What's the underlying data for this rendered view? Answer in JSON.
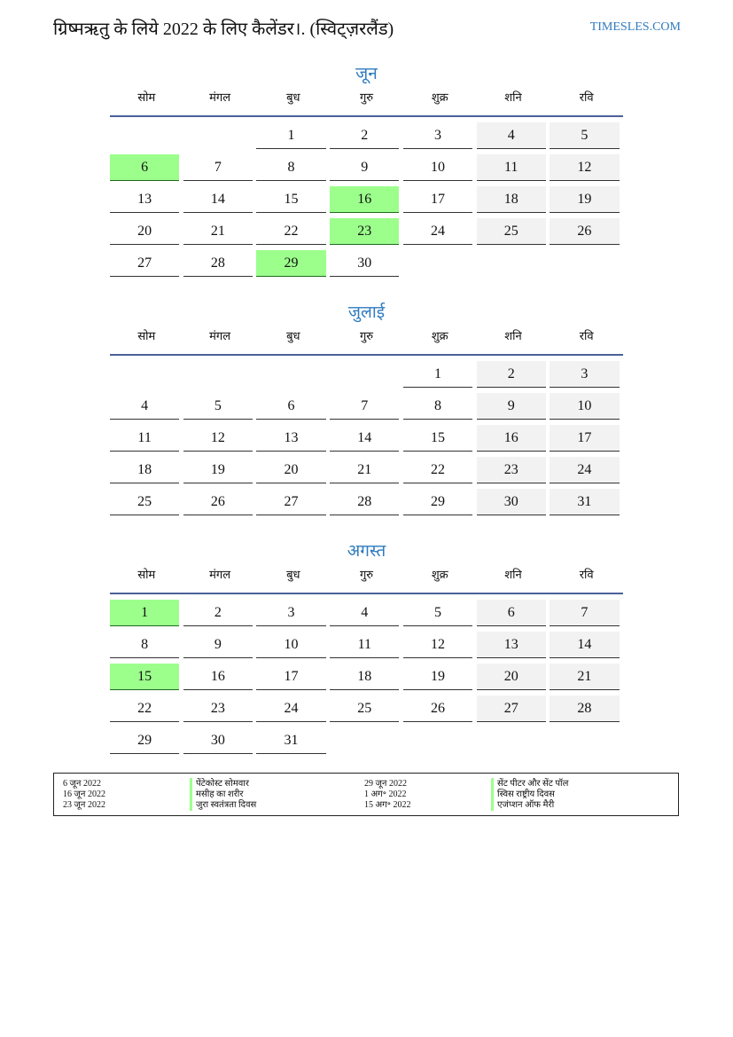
{
  "header": {
    "title": "ग्रिष्मऋतु के लिये 2022 के लिए कैलेंडर।. (स्विट्ज़रलैंड)",
    "site": "TIMESLES.COM"
  },
  "colors": {
    "accent": "#2f7bbf",
    "holiday": "#9cff8c",
    "weekend": "#f2f2f2"
  },
  "weekdays": [
    "सोम",
    "मंगल",
    "बुध",
    "गुरु",
    "शुक्र",
    "शनि",
    "रवि"
  ],
  "months": [
    {
      "name": "जून",
      "weeks": [
        [
          null,
          null,
          1,
          2,
          3,
          4,
          5
        ],
        [
          6,
          7,
          8,
          9,
          10,
          11,
          12
        ],
        [
          13,
          14,
          15,
          16,
          17,
          18,
          19
        ],
        [
          20,
          21,
          22,
          23,
          24,
          25,
          26
        ],
        [
          27,
          28,
          29,
          30,
          null,
          null,
          null
        ]
      ],
      "holidays": [
        6,
        16,
        23,
        29
      ]
    },
    {
      "name": "जुलाई",
      "weeks": [
        [
          null,
          null,
          null,
          null,
          1,
          2,
          3
        ],
        [
          4,
          5,
          6,
          7,
          8,
          9,
          10
        ],
        [
          11,
          12,
          13,
          14,
          15,
          16,
          17
        ],
        [
          18,
          19,
          20,
          21,
          22,
          23,
          24
        ],
        [
          25,
          26,
          27,
          28,
          29,
          30,
          31
        ]
      ],
      "holidays": []
    },
    {
      "name": "अगस्त",
      "weeks": [
        [
          1,
          2,
          3,
          4,
          5,
          6,
          7
        ],
        [
          8,
          9,
          10,
          11,
          12,
          13,
          14
        ],
        [
          15,
          16,
          17,
          18,
          19,
          20,
          21
        ],
        [
          22,
          23,
          24,
          25,
          26,
          27,
          28
        ],
        [
          29,
          30,
          31,
          null,
          null,
          null,
          null
        ]
      ],
      "holidays": [
        1,
        15
      ]
    }
  ],
  "legend": [
    [
      {
        "date": "6 जून 2022",
        "name": "पेंटेकोस्ट सोमवार"
      },
      {
        "date": "29 जून 2022",
        "name": "सेंट पीटर और सेंट पॉल"
      }
    ],
    [
      {
        "date": "16 जून 2022",
        "name": "मसीह का शरीर"
      },
      {
        "date": "1 अग॰ 2022",
        "name": "स्विस राष्ट्रीय दिवस"
      }
    ],
    [
      {
        "date": "23 जून 2022",
        "name": "जुरा स्वतंत्रता दिवस"
      },
      {
        "date": "15 अग॰ 2022",
        "name": "एजंप्शन ऑफ मैरी"
      }
    ]
  ]
}
